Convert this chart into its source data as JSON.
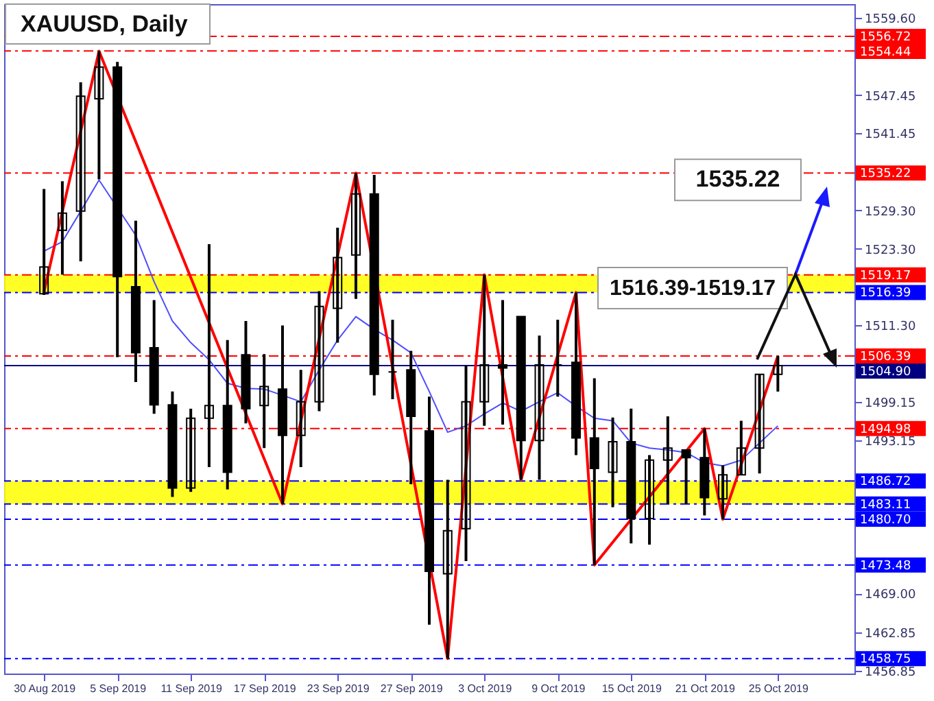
{
  "chart_data": {
    "type": "candlestick",
    "title": "XAUUSD, Daily",
    "categories": [
      "30 Aug 2019",
      null,
      null,
      null,
      "5 Sep 2019",
      null,
      null,
      null,
      "11 Sep 2019",
      null,
      null,
      null,
      "17 Sep 2019",
      null,
      null,
      null,
      "23 Sep 2019",
      null,
      null,
      null,
      "27 Sep 2019",
      null,
      null,
      null,
      "3 Oct 2019",
      null,
      null,
      null,
      "9 Oct 2019",
      null,
      null,
      null,
      "15 Oct 2019",
      null,
      null,
      null,
      "21 Oct 2019",
      null,
      null,
      null,
      "25 Oct 2019"
    ],
    "ohlc": [
      [
        1516.2,
        1532.7,
        1516.0,
        1520.4
      ],
      [
        1526.2,
        1533.9,
        1519.2,
        1528.9
      ],
      [
        1529.2,
        1549.5,
        1521.3,
        1547.3
      ],
      [
        1546.9,
        1554.4,
        1534.2,
        1551.9
      ],
      [
        1551.9,
        1552.7,
        1506.2,
        1518.9
      ],
      [
        1517.3,
        1527.7,
        1502.3,
        1506.9
      ],
      [
        1507.7,
        1515.2,
        1497.3,
        1498.7
      ],
      [
        1498.7,
        1500.8,
        1484.2,
        1485.6
      ],
      [
        1485.6,
        1498.1,
        1485.0,
        1496.6
      ],
      [
        1496.6,
        1524.0,
        1488.9,
        1498.6
      ],
      [
        1498.6,
        1508.9,
        1485.4,
        1488.1
      ],
      [
        1506.6,
        1511.9,
        1495.8,
        1498.1
      ],
      [
        1498.6,
        1506.7,
        1491.9,
        1501.6
      ],
      [
        1501.2,
        1511.2,
        1483.1,
        1493.9
      ],
      [
        1493.9,
        1504.2,
        1488.9,
        1499.2
      ],
      [
        1499.2,
        1516.6,
        1497.7,
        1514.2
      ],
      [
        1513.9,
        1526.6,
        1508.5,
        1521.9
      ],
      [
        1522.3,
        1535.2,
        1515.4,
        1531.9
      ],
      [
        1531.9,
        1534.9,
        1500.2,
        1503.5
      ],
      [
        1503.9,
        1512.1,
        1499.6,
        1503.9
      ],
      [
        1504.2,
        1507.2,
        1486.2,
        1496.9
      ],
      [
        1494.6,
        1500.0,
        1464.1,
        1472.5
      ],
      [
        1472.1,
        1486.9,
        1458.75,
        1478.9
      ],
      [
        1479.2,
        1504.9,
        1474.1,
        1499.2
      ],
      [
        1499.2,
        1519.2,
        1495.4,
        1505.0
      ],
      [
        1505.0,
        1515.2,
        1495.6,
        1504.5
      ],
      [
        1512.6,
        1512.6,
        1486.9,
        1493.1
      ],
      [
        1493.1,
        1509.6,
        1486.9,
        1505.0
      ],
      [
        1505.0,
        1512.1,
        1500.0,
        1505.0
      ],
      [
        1505.4,
        1516.4,
        1490.8,
        1493.5
      ],
      [
        1493.5,
        1502.9,
        1473.5,
        1488.7
      ],
      [
        1488.1,
        1496.7,
        1482.6,
        1492.9
      ],
      [
        1492.9,
        1498.1,
        1476.9,
        1480.8
      ],
      [
        1480.8,
        1490.8,
        1476.7,
        1490.0
      ],
      [
        1490.0,
        1496.9,
        1483.1,
        1491.9
      ],
      [
        1491.6,
        1491.6,
        1483.1,
        1490.4
      ],
      [
        1490.4,
        1495.0,
        1481.3,
        1484.1
      ],
      [
        1483.9,
        1489.2,
        1480.7,
        1487.7
      ],
      [
        1487.7,
        1496.2,
        1487.7,
        1491.9
      ],
      [
        1491.9,
        1503.6,
        1487.9,
        1503.5
      ],
      [
        1503.5,
        1506.4,
        1500.8,
        1504.9
      ]
    ],
    "color": "#000000",
    "series": [
      {
        "type": "line",
        "color": "#4d4dff",
        "values": [
          1522.9,
          1524.4,
          1529.2,
          1534.1,
          null,
          1525.4,
          1518.1,
          1511.9,
          1508.5,
          1505.8,
          1502.1,
          1501.3,
          1501.2,
          1500.2,
          1499.2,
          1504.2,
          1508.9,
          1512.6,
          1510.6,
          1508.9,
          1506.9,
          1500.8,
          1494.4,
          1495.4,
          1497.3,
          1499.0,
          1497.7,
          1499.2,
          1500.6,
          1498.5,
          1496.6,
          1496.2,
          1492.7,
          1491.9,
          1491.6,
          1491.2,
          1489.6,
          1489.1,
          1490.0,
          1492.7,
          1495.4
        ]
      },
      {
        "type": "line",
        "color": "#ff0000",
        "values": [
          1516.5,
          null,
          null,
          1554.4,
          null,
          null,
          null,
          null,
          null,
          null,
          null,
          null,
          null,
          1483.1,
          null,
          null,
          null,
          1535.2,
          null,
          null,
          null,
          null,
          1458.75,
          null,
          1519.2,
          null,
          1486.9,
          null,
          null,
          1516.4,
          1473.5,
          null,
          null,
          null,
          null,
          null,
          1494.98,
          1480.7,
          null,
          null,
          1506.4
        ]
      }
    ],
    "ylim": [
      1456.4,
      1561.8
    ],
    "yticks": [
      {
        "value": 1559.6,
        "label": "1559.60"
      },
      1547.45,
      1541.45,
      {
        "value": 1529.3,
        "label": "1529.30"
      },
      {
        "value": 1523.3,
        "label": "1523.30"
      },
      {
        "value": 1511.3,
        "label": "1511.30"
      },
      1499.15,
      1493.15,
      {
        "value": 1469.0,
        "label": "1469.00"
      },
      1462.85,
      1456.85
    ],
    "ref_lines": [
      {
        "axis": "y",
        "value": 1556.72,
        "label": "1556.72",
        "color": "#ff0000",
        "line_style": "dashed"
      },
      {
        "axis": "y",
        "value": 1554.44,
        "label": "1554.44",
        "color": "#ff0000",
        "line_style": "dashed"
      },
      {
        "axis": "y",
        "value": 1535.22,
        "label": "1535.22",
        "color": "#ff0000",
        "line_style": "dashed"
      },
      {
        "axis": "y",
        "value": 1519.17,
        "label": "1519.17",
        "color": "#ff0000",
        "line_style": "dashed"
      },
      {
        "axis": "y",
        "value": 1516.39,
        "label": "1516.39",
        "color": "#0000ff",
        "line_style": "dashed"
      },
      {
        "axis": "y",
        "value": 1506.39,
        "label": "1506.39",
        "color": "#ff0000",
        "line_style": "dashed"
      },
      {
        "axis": "y",
        "value": 1504.9,
        "label": "1504.90",
        "color": "#000080",
        "line_style": "solid"
      },
      {
        "axis": "y",
        "value": 1494.98,
        "label": "1494.98",
        "color": "#ff0000",
        "line_style": "dashed"
      },
      {
        "axis": "y",
        "value": 1486.72,
        "label": "1486.72",
        "color": "#0000ff",
        "line_style": "dashed"
      },
      {
        "axis": "y",
        "value": 1483.11,
        "label": "1483.11",
        "color": "#0000ff",
        "line_style": "dashed"
      },
      {
        "axis": "y",
        "value": 1480.7,
        "label": "1480.70",
        "color": "#0000ff",
        "line_style": "dashed"
      },
      {
        "axis": "y",
        "value": 1473.48,
        "label": "1473.48",
        "color": "#0000ff",
        "line_style": "dashed"
      },
      {
        "axis": "y",
        "value": 1458.75,
        "label": "1458.75",
        "color": "#0000ff",
        "line_style": "dashed"
      }
    ],
    "bands": [
      {
        "axis": "y",
        "from": 1516.39,
        "to": 1519.17,
        "color": "#ffff00"
      },
      {
        "axis": "y",
        "from": 1483.11,
        "to": 1486.72,
        "color": "#ffff00"
      }
    ],
    "annotations": [
      "1535.22",
      "1516.39-1519.17"
    ]
  }
}
